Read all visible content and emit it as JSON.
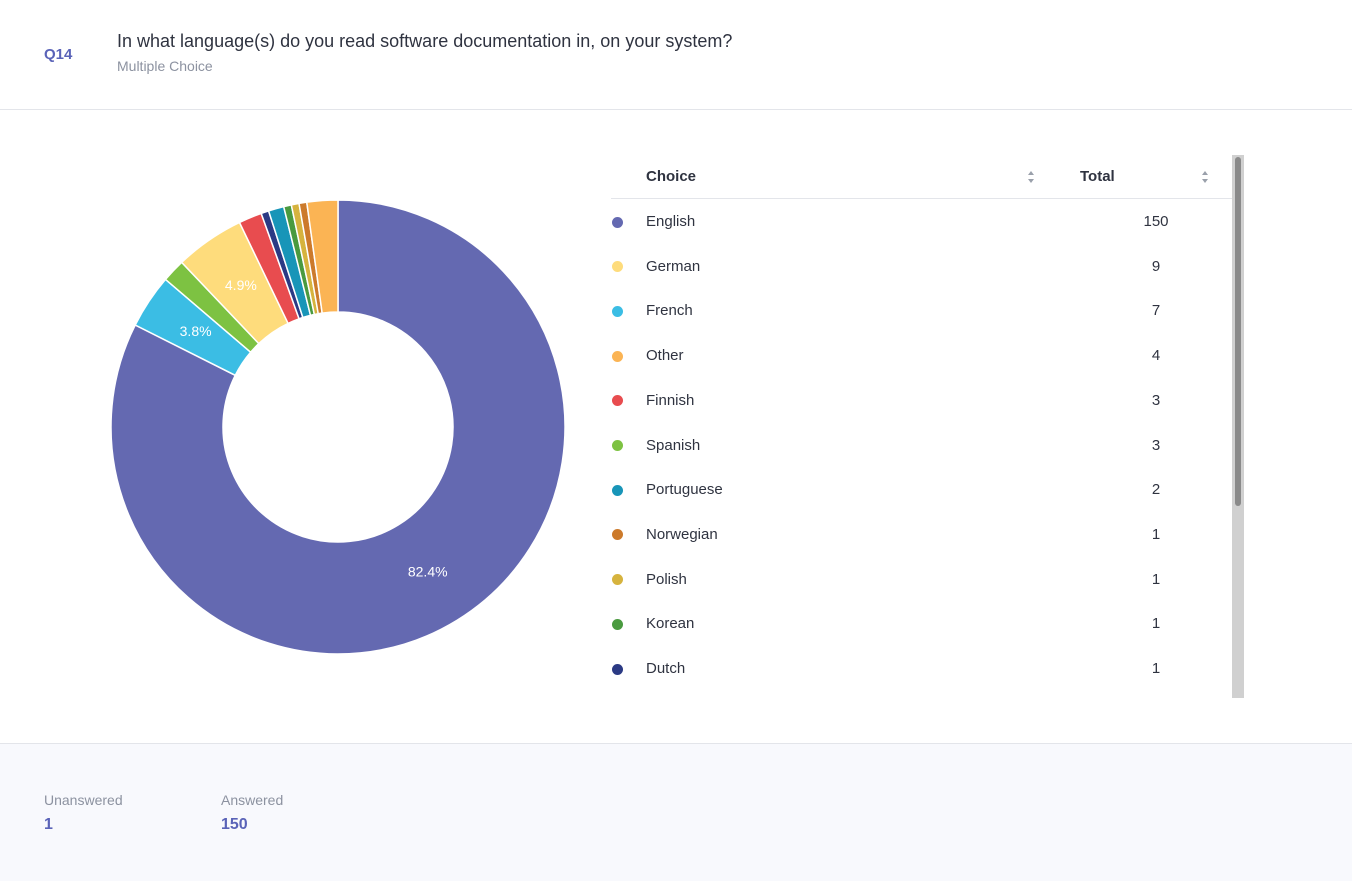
{
  "header": {
    "id": "Q14",
    "title": "In what language(s) do you read software documentation in, on your system?",
    "subtitle": "Multiple Choice"
  },
  "chart_data": {
    "type": "donut",
    "categories": [
      "English",
      "French",
      "Spanish",
      "German",
      "Finnish",
      "Dutch",
      "Portuguese",
      "Korean",
      "Polish",
      "Norwegian",
      "Other"
    ],
    "values": [
      150,
      7,
      3,
      9,
      3,
      1,
      2,
      1,
      1,
      1,
      4
    ],
    "value_labels": [
      "82.4%",
      "3.8%",
      null,
      "4.9%",
      null,
      null,
      null,
      null,
      null,
      null,
      null
    ],
    "colors": [
      "#6469b1",
      "#3bbde4",
      "#7dc242",
      "#fedc7c",
      "#e84c4f",
      "#2b3a84",
      "#1895b8",
      "#4a9a3f",
      "#d6b33e",
      "#cc7a2b",
      "#fbb454"
    ]
  },
  "table": {
    "columns": [
      "Choice",
      "Total"
    ],
    "rows": [
      {
        "choice": "English",
        "total": "150",
        "color": "#6469b1"
      },
      {
        "choice": "German",
        "total": "9",
        "color": "#fedc7c"
      },
      {
        "choice": "French",
        "total": "7",
        "color": "#3bbde4"
      },
      {
        "choice": "Other",
        "total": "4",
        "color": "#fbb454"
      },
      {
        "choice": "Finnish",
        "total": "3",
        "color": "#e84c4f"
      },
      {
        "choice": "Spanish",
        "total": "3",
        "color": "#7dc242"
      },
      {
        "choice": "Portuguese",
        "total": "2",
        "color": "#1895b8"
      },
      {
        "choice": "Norwegian",
        "total": "1",
        "color": "#cc7a2b"
      },
      {
        "choice": "Polish",
        "total": "1",
        "color": "#d6b33e"
      },
      {
        "choice": "Korean",
        "total": "1",
        "color": "#4a9a3f"
      },
      {
        "choice": "Dutch",
        "total": "1",
        "color": "#2b3a84"
      }
    ]
  },
  "footer": {
    "stats": [
      {
        "label": "Unanswered",
        "value": "1"
      },
      {
        "label": "Answered",
        "value": "150"
      }
    ]
  }
}
